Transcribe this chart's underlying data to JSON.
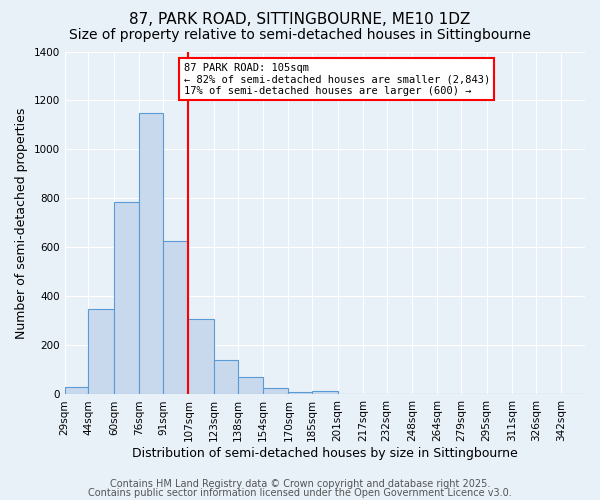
{
  "title": "87, PARK ROAD, SITTINGBOURNE, ME10 1DZ",
  "subtitle": "Size of property relative to semi-detached houses in Sittingbourne",
  "xlabel": "Distribution of semi-detached houses by size in Sittingbourne",
  "ylabel": "Number of semi-detached properties",
  "bin_labels": [
    "29sqm",
    "44sqm",
    "60sqm",
    "76sqm",
    "91sqm",
    "107sqm",
    "123sqm",
    "138sqm",
    "154sqm",
    "170sqm",
    "185sqm",
    "201sqm",
    "217sqm",
    "232sqm",
    "248sqm",
    "264sqm",
    "279sqm",
    "295sqm",
    "311sqm",
    "326sqm",
    "342sqm"
  ],
  "bin_starts": [
    29,
    44,
    60,
    76,
    91,
    107,
    123,
    138,
    154,
    170,
    185,
    201,
    217,
    232,
    248,
    264,
    279,
    295,
    311,
    326,
    342
  ],
  "bin_width": 15,
  "counts": [
    30,
    350,
    785,
    1150,
    625,
    310,
    140,
    70,
    25,
    10,
    15,
    0,
    0,
    0,
    0,
    0,
    0,
    0,
    0,
    0,
    0
  ],
  "bar_color": "#c8d9ed",
  "bar_edge_color": "#5b9bd5",
  "vline_x": 107,
  "vline_color": "red",
  "annotation_title": "87 PARK ROAD: 105sqm",
  "annotation_line1": "← 82% of semi-detached houses are smaller (2,843)",
  "annotation_line2": "17% of semi-detached houses are larger (600) →",
  "annotation_box_color": "white",
  "annotation_box_edge_color": "red",
  "ylim": [
    0,
    1400
  ],
  "yticks": [
    0,
    200,
    400,
    600,
    800,
    1000,
    1200,
    1400
  ],
  "footer1": "Contains HM Land Registry data © Crown copyright and database right 2025.",
  "footer2": "Contains public sector information licensed under the Open Government Licence v3.0.",
  "background_color": "#e8f0f8",
  "grid_color": "white",
  "title_fontsize": 11,
  "subtitle_fontsize": 10,
  "axis_label_fontsize": 9,
  "tick_fontsize": 7.5,
  "footer_fontsize": 7
}
